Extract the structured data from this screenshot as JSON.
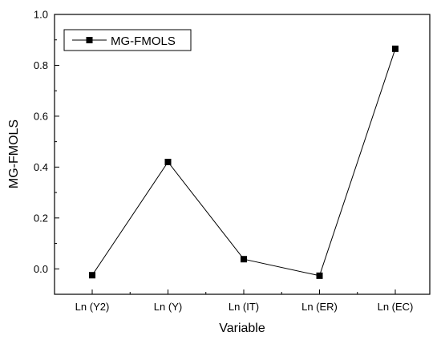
{
  "chart_data": {
    "type": "line",
    "categories": [
      "Ln (Y2)",
      "Ln (Y)",
      "Ln (IT)",
      "Ln (ER)",
      "Ln (EC)"
    ],
    "series": [
      {
        "name": "MG-FMOLS",
        "values": [
          -0.025,
          0.42,
          0.038,
          -0.027,
          0.865
        ]
      }
    ],
    "xlabel": "Variable",
    "ylabel": "MG-FMOLS",
    "ylim": [
      -0.1,
      1.0
    ],
    "yticks": [
      0.0,
      0.2,
      0.4,
      0.6,
      0.8,
      1.0
    ],
    "ytick_labels": [
      "0.0",
      "0.2",
      "0.4",
      "0.6",
      "0.8",
      "1.0"
    ],
    "grid": false,
    "legend_position": "top-left",
    "marker": "square",
    "line_color": "#000000"
  }
}
